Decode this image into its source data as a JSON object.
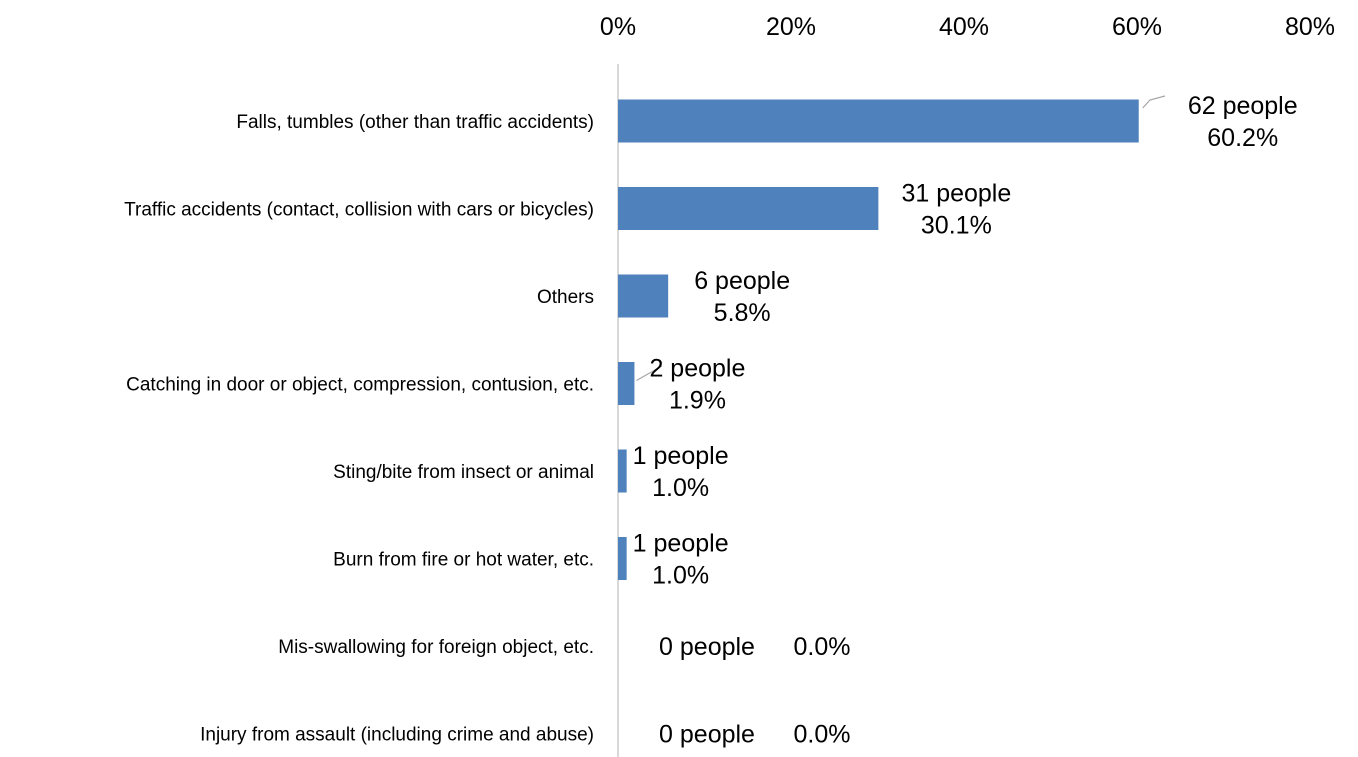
{
  "chart_data": {
    "type": "bar",
    "orientation": "horizontal",
    "title": "",
    "xlabel": "",
    "ylabel": "",
    "xlim": [
      0,
      80
    ],
    "x_ticks": [
      "0%",
      "20%",
      "40%",
      "60%",
      "80%"
    ],
    "x_axis_position": "top",
    "grid": false,
    "legend": "none",
    "bar_color": "#4f81bd",
    "categories": [
      "Falls, tumbles (other than traffic accidents)",
      "Traffic accidents (contact, collision with cars or bicycles)",
      "Others",
      "Catching in door or object, compression, contusion, etc.",
      "Sting/bite from insect or animal",
      "Burn from fire or hot water, etc.",
      "Mis-swallowing for foreign object, etc.",
      "Injury from assault (including crime and abuse)"
    ],
    "counts": [
      62,
      31,
      6,
      2,
      1,
      1,
      0,
      0
    ],
    "values": [
      60.2,
      30.1,
      5.8,
      1.9,
      1.0,
      1.0,
      0.0,
      0.0
    ],
    "data_labels": [
      {
        "people": "62 people",
        "percent": "60.2%"
      },
      {
        "people": "31 people",
        "percent": "30.1%"
      },
      {
        "people": "6 people",
        "percent": "5.8%"
      },
      {
        "people": "2 people",
        "percent": "1.9%"
      },
      {
        "people": "1 people",
        "percent": "1.0%"
      },
      {
        "people": "1 people",
        "percent": "1.0%"
      },
      {
        "people": "0 people",
        "percent": "0.0%"
      },
      {
        "people": "0 people",
        "percent": "0.0%"
      }
    ]
  }
}
